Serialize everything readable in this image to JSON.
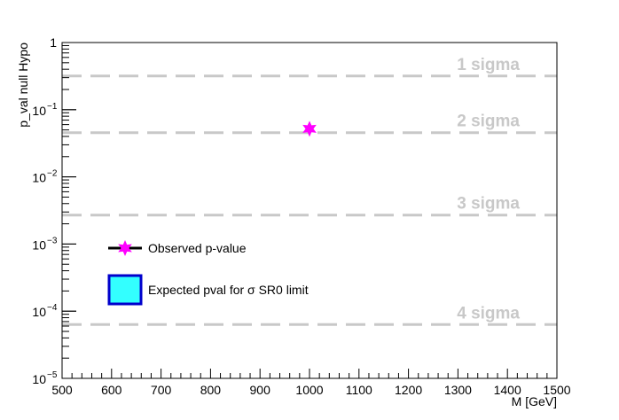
{
  "chart_data": {
    "type": "scatter",
    "xlabel": "M  [GeV]",
    "ylabel": "p_val null Hypo",
    "xlim": [
      500,
      1500
    ],
    "ylim": [
      1e-05,
      1
    ],
    "yscale": "log",
    "grid": false,
    "x_ticks": [
      "500",
      "600",
      "700",
      "800",
      "900",
      "1000",
      "1100",
      "1200",
      "1300",
      "1400",
      "1500"
    ],
    "y_ticks": [
      {
        "value": 1,
        "base": "1",
        "exp": ""
      },
      {
        "value": 0.1,
        "base": "10",
        "exp": "−1"
      },
      {
        "value": 0.01,
        "base": "10",
        "exp": "−2"
      },
      {
        "value": 0.001,
        "base": "10",
        "exp": "−3"
      },
      {
        "value": 0.0001,
        "base": "10",
        "exp": "−4"
      },
      {
        "value": 1e-05,
        "base": "10",
        "exp": "−5"
      }
    ],
    "series": [
      {
        "name": "Observed p-value",
        "marker": "star",
        "color": "#ff00ff",
        "points": [
          {
            "x": 1000,
            "y": 0.052
          }
        ]
      }
    ],
    "reference_lines": [
      {
        "label": "1 sigma",
        "y": 0.3173
      },
      {
        "label": "2 sigma",
        "y": 0.0455
      },
      {
        "label": "3 sigma",
        "y": 0.0027
      },
      {
        "label": "4 sigma",
        "y": 6.33e-05
      }
    ],
    "legend": {
      "placement": "left-center",
      "entries": [
        {
          "label": "Observed p-value",
          "type": "marker"
        },
        {
          "label": "Expected pval for σ SR0 limit",
          "type": "box",
          "fill": "#33ffff",
          "border": "#0000cc"
        }
      ]
    },
    "colors": {
      "reference": "#c8c8c8",
      "observed": "#ff00ff"
    }
  }
}
